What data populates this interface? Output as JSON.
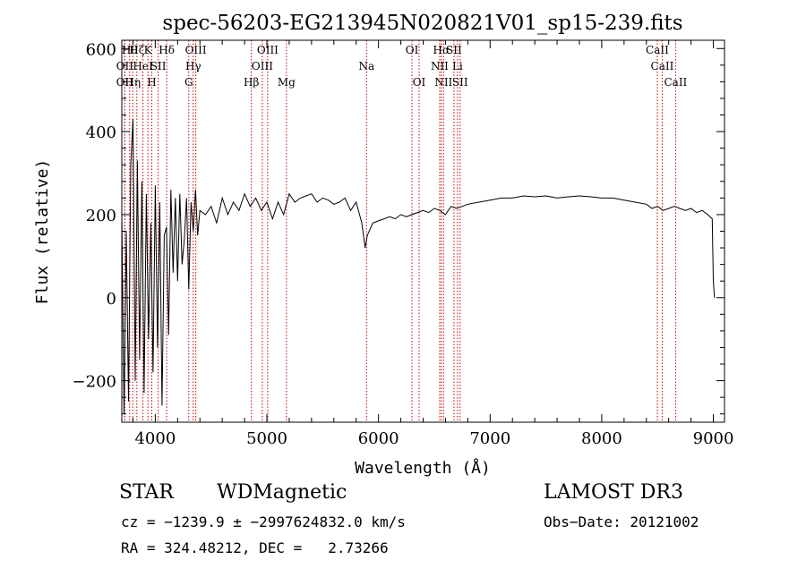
{
  "chart_data": {
    "type": "line",
    "title": "spec-56203-EG213945N020821V01_sp15-239.fits",
    "xlabel": "Wavelength (Å)",
    "ylabel": "Flux (relative)",
    "xlim": [
      3700,
      9100
    ],
    "ylim": [
      -300,
      620
    ],
    "x_ticks": [
      4000,
      5000,
      6000,
      7000,
      8000,
      9000
    ],
    "x_tick_labels": [
      "4000",
      "5000",
      "6000",
      "7000",
      "8000",
      "9000"
    ],
    "y_ticks": [
      -200,
      0,
      200,
      400,
      600
    ],
    "y_tick_labels": [
      "−200",
      "0",
      "200",
      "400",
      "600"
    ],
    "series": [
      {
        "name": "flux",
        "x": [
          3700,
          3720,
          3740,
          3760,
          3780,
          3800,
          3820,
          3840,
          3860,
          3880,
          3900,
          3920,
          3940,
          3960,
          3980,
          4000,
          4020,
          4040,
          4060,
          4080,
          4100,
          4120,
          4140,
          4160,
          4180,
          4200,
          4220,
          4240,
          4260,
          4280,
          4300,
          4320,
          4340,
          4360,
          4380,
          4400,
          4450,
          4500,
          4550,
          4600,
          4650,
          4700,
          4750,
          4800,
          4850,
          4900,
          4950,
          5000,
          5050,
          5100,
          5150,
          5200,
          5250,
          5300,
          5350,
          5400,
          5450,
          5500,
          5550,
          5600,
          5650,
          5700,
          5750,
          5800,
          5850,
          5880,
          5900,
          5950,
          6000,
          6050,
          6100,
          6150,
          6200,
          6250,
          6300,
          6350,
          6400,
          6450,
          6500,
          6550,
          6600,
          6650,
          6700,
          6750,
          6800,
          6900,
          7000,
          7100,
          7200,
          7300,
          7400,
          7500,
          7600,
          7700,
          7800,
          7900,
          8000,
          8100,
          8200,
          8300,
          8400,
          8450,
          8500,
          8550,
          8600,
          8650,
          8700,
          8750,
          8800,
          8850,
          8900,
          8950,
          8990,
          9000,
          9010
        ],
        "values": [
          200,
          -280,
          160,
          -250,
          320,
          430,
          -200,
          330,
          -150,
          280,
          -230,
          250,
          -100,
          180,
          -180,
          270,
          -120,
          230,
          -260,
          150,
          170,
          -90,
          260,
          60,
          240,
          40,
          250,
          80,
          140,
          240,
          20,
          230,
          160,
          260,
          150,
          210,
          200,
          220,
          180,
          240,
          200,
          230,
          210,
          250,
          220,
          240,
          210,
          230,
          190,
          230,
          200,
          250,
          230,
          240,
          245,
          250,
          230,
          240,
          235,
          225,
          230,
          240,
          210,
          230,
          180,
          120,
          150,
          180,
          185,
          190,
          195,
          190,
          200,
          195,
          200,
          205,
          210,
          205,
          215,
          210,
          200,
          220,
          215,
          220,
          225,
          230,
          235,
          240,
          240,
          245,
          243,
          245,
          240,
          243,
          245,
          243,
          240,
          240,
          235,
          230,
          225,
          215,
          220,
          210,
          215,
          220,
          215,
          210,
          215,
          205,
          210,
          200,
          190,
          40,
          0
        ]
      }
    ],
    "line_labels": [
      {
        "wavelength": 3727,
        "text": "OII",
        "row": 2
      },
      {
        "wavelength": 3727,
        "text": "OII",
        "row": 3
      },
      {
        "wavelength": 3770,
        "text": "Hθ",
        "row": 1
      },
      {
        "wavelength": 3798,
        "text": "Hη",
        "row": 3
      },
      {
        "wavelength": 3835,
        "text": "Hζ",
        "row": 1
      },
      {
        "wavelength": 3889,
        "text": "HeI",
        "row": 2
      },
      {
        "wavelength": 3934,
        "text": "K",
        "row": 1
      },
      {
        "wavelength": 3969,
        "text": "H",
        "row": 3
      },
      {
        "wavelength": 4026,
        "text": "SII",
        "row": 2
      },
      {
        "wavelength": 4102,
        "text": "Hδ",
        "row": 1
      },
      {
        "wavelength": 4300,
        "text": "G",
        "row": 3
      },
      {
        "wavelength": 4340,
        "text": "Hγ",
        "row": 2
      },
      {
        "wavelength": 4363,
        "text": "OIII",
        "row": 1
      },
      {
        "wavelength": 4861,
        "text": "Hβ",
        "row": 3
      },
      {
        "wavelength": 4959,
        "text": "OIII",
        "row": 2
      },
      {
        "wavelength": 5007,
        "text": "OIII",
        "row": 1
      },
      {
        "wavelength": 5175,
        "text": "Mg",
        "row": 3
      },
      {
        "wavelength": 5893,
        "text": "Na",
        "row": 2
      },
      {
        "wavelength": 6300,
        "text": "OI",
        "row": 1
      },
      {
        "wavelength": 6364,
        "text": "OI",
        "row": 3
      },
      {
        "wavelength": 6548,
        "text": "NII",
        "row": 2
      },
      {
        "wavelength": 6563,
        "text": "Hα",
        "row": 1
      },
      {
        "wavelength": 6583,
        "text": "NII",
        "row": 3
      },
      {
        "wavelength": 6676,
        "text": "SII",
        "row": 1
      },
      {
        "wavelength": 6708,
        "text": "Li",
        "row": 2
      },
      {
        "wavelength": 6731,
        "text": "SII",
        "row": 3
      },
      {
        "wavelength": 8498,
        "text": "CaII",
        "row": 1
      },
      {
        "wavelength": 8542,
        "text": "CaII",
        "row": 2
      },
      {
        "wavelength": 8662,
        "text": "CaII",
        "row": 3
      }
    ],
    "grid": false,
    "line_color": "#000000",
    "marker_color": "#cc0000"
  },
  "footer": {
    "object_class": "STAR",
    "subclass": "WDMagnetic",
    "survey": "LAMOST DR3",
    "cz_text": "cz = −1239.9 ± −2997624832.0 km/s",
    "obs_date": "Obs−Date: 20121002",
    "radec_text": "RA = 324.48212, DEC =   2.73266"
  }
}
